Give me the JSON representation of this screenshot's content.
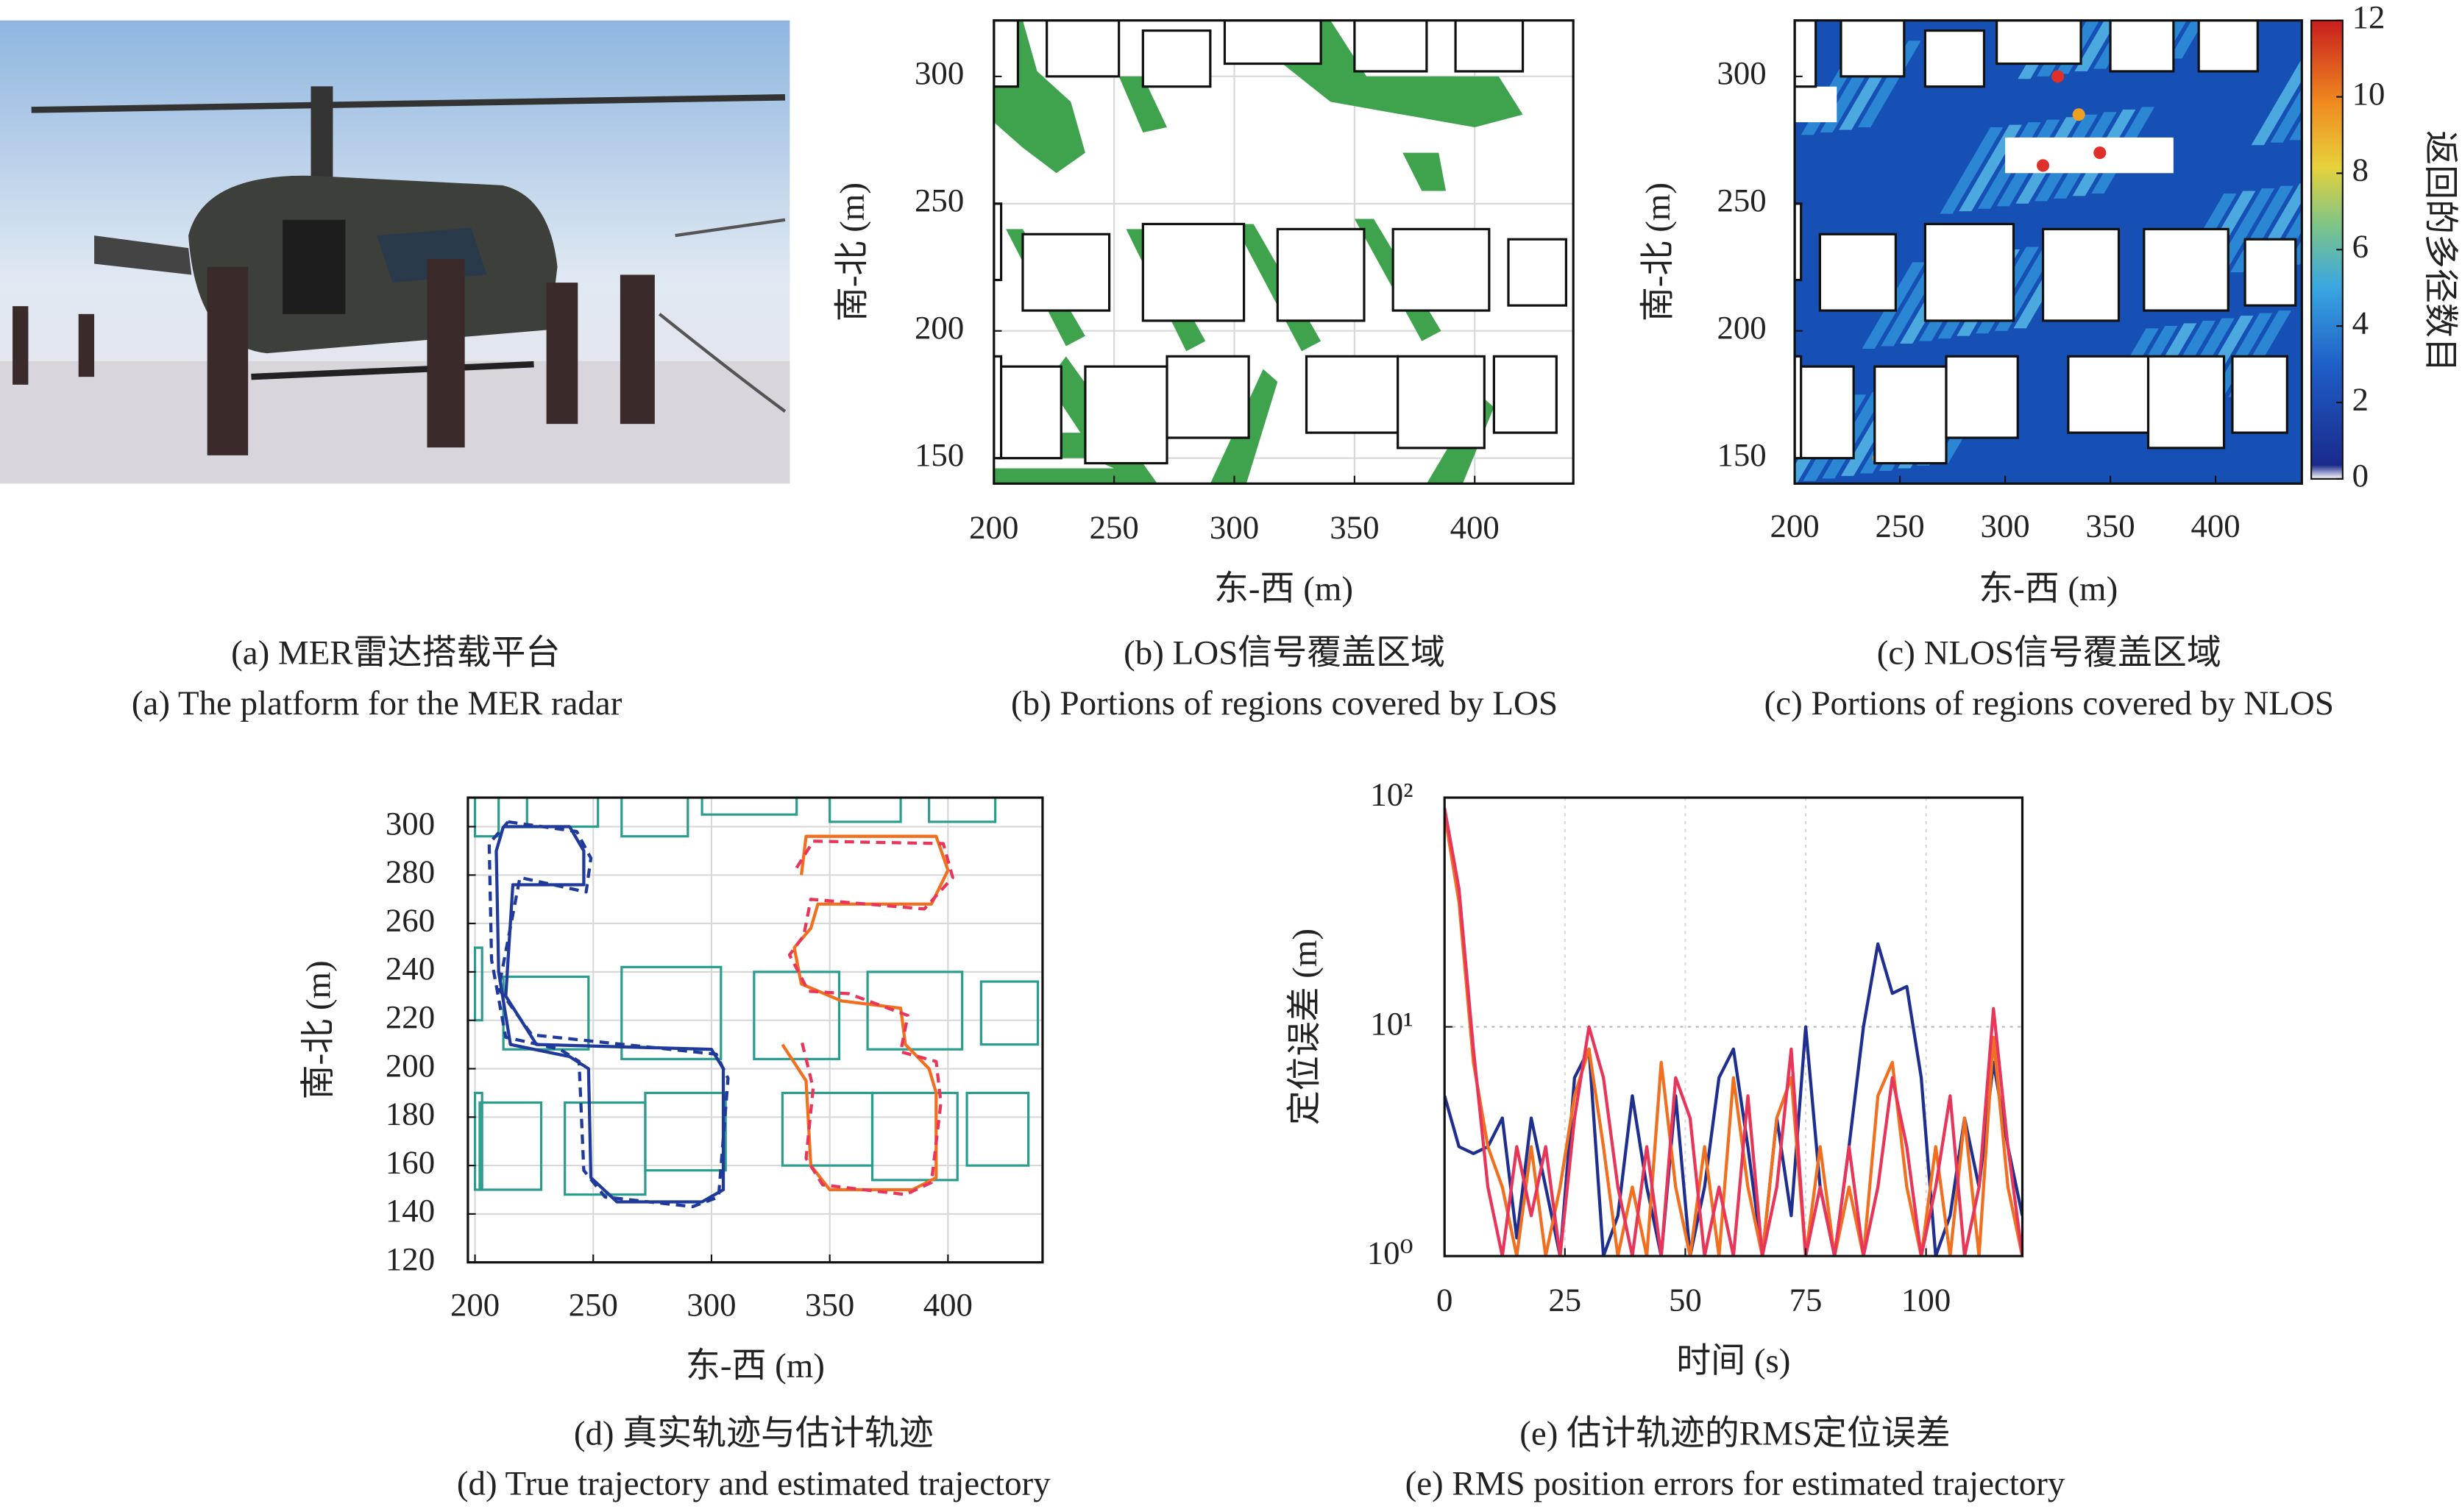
{
  "photo": {
    "caption_cn": "(a) MER雷达搭载平台",
    "caption_en": "(a) The platform for the MER radar"
  },
  "chart_data": [
    {
      "type": "map",
      "caption_cn": "(b) LOS信号覆盖区域",
      "caption_en": "(b) Portions of regions covered by LOS",
      "xlabel": "东-西 (m)",
      "ylabel": "南-北 (m)",
      "xlim": [
        200,
        441
      ],
      "ylim": [
        140,
        322
      ],
      "xticks": [
        200,
        250,
        300,
        350,
        400
      ],
      "yticks": [
        150,
        200,
        250,
        300
      ],
      "grid": true,
      "color": "#3fa34d"
    },
    {
      "type": "heatmap",
      "caption_cn": "(c) NLOS信号覆盖区域",
      "caption_en": "(c) Portions of regions covered by NLOS",
      "xlabel": "东-西 (m)",
      "ylabel": "南-北 (m)",
      "xlim": [
        200,
        441
      ],
      "ylim": [
        140,
        322
      ],
      "xticks": [
        200,
        250,
        300,
        350,
        400
      ],
      "yticks": [
        150,
        200,
        250,
        300
      ],
      "grid": false,
      "colorbar": {
        "label": "返回的多径数目",
        "lim": [
          0,
          12
        ],
        "ticks": [
          0,
          2,
          4,
          6,
          8,
          10,
          12
        ]
      }
    },
    {
      "type": "line",
      "caption_cn": "(d) 真实轨迹与估计轨迹",
      "caption_en": "(d) True trajectory and estimated trajectory",
      "xlabel": "东-西 (m)",
      "ylabel": "南-北 (m)",
      "xlim": [
        197,
        440
      ],
      "ylim": [
        120,
        312
      ],
      "xticks": [
        200,
        250,
        300,
        350,
        400
      ],
      "yticks": [
        120,
        140,
        160,
        180,
        200,
        220,
        240,
        260,
        280,
        300
      ],
      "grid": true,
      "series": [
        {
          "color": "#1f3a9a",
          "dashed": false,
          "x": [
            212,
            240,
            246,
            246,
            216,
            213,
            226,
            300,
            305,
            305,
            296,
            260,
            249,
            248,
            240,
            215,
            210,
            209,
            212
          ],
          "values": [
            300,
            300,
            290,
            276,
            276,
            230,
            210,
            208,
            200,
            150,
            145,
            145,
            155,
            200,
            205,
            210,
            240,
            290,
            300
          ]
        },
        {
          "color": "#1f3a9a",
          "dashed": true,
          "x": [
            214,
            243,
            249,
            247,
            219,
            210,
            224,
            302,
            307,
            303,
            292,
            255,
            246,
            244,
            236,
            213,
            207,
            206,
            214
          ],
          "values": [
            302,
            298,
            287,
            273,
            279,
            233,
            214,
            206,
            196,
            147,
            143,
            147,
            158,
            203,
            208,
            213,
            245,
            293,
            302
          ]
        },
        {
          "color": "#f07020",
          "dashed": false,
          "x": [
            338,
            340,
            395,
            400,
            393,
            345,
            342,
            335,
            338,
            355,
            380,
            382,
            392,
            395,
            395,
            385,
            350,
            342,
            340,
            330
          ],
          "values": [
            280,
            296,
            296,
            282,
            268,
            268,
            258,
            250,
            235,
            228,
            225,
            210,
            200,
            190,
            155,
            150,
            150,
            160,
            195,
            210
          ]
        },
        {
          "color": "#e8365a",
          "dashed": true,
          "x": [
            336,
            343,
            398,
            402,
            390,
            342,
            339,
            333,
            341,
            358,
            383,
            380,
            395,
            397,
            393,
            382,
            347,
            340,
            343,
            338
          ],
          "values": [
            283,
            294,
            293,
            279,
            266,
            270,
            255,
            247,
            232,
            231,
            222,
            207,
            203,
            186,
            153,
            148,
            152,
            163,
            192,
            212
          ]
        }
      ]
    },
    {
      "type": "line",
      "log_y": true,
      "caption_cn": "(e) 估计轨迹的RMS定位误差",
      "caption_en": "(e) RMS position errors for estimated trajectory",
      "xlabel": "时间 (s)",
      "ylabel": "定位误差 (m)",
      "xlim": [
        0,
        120
      ],
      "ylim": [
        1,
        100
      ],
      "xticks": [
        0,
        25,
        50,
        75,
        100
      ],
      "yticks": [
        {
          "value": 1,
          "label": "10⁰"
        },
        {
          "value": 10,
          "label": "10¹"
        },
        {
          "value": 100,
          "label": "10²"
        }
      ],
      "grid": true,
      "x": [
        0,
        3,
        6,
        9,
        12,
        15,
        18,
        21,
        24,
        27,
        30,
        33,
        36,
        39,
        42,
        45,
        48,
        51,
        54,
        57,
        60,
        63,
        66,
        69,
        72,
        75,
        78,
        81,
        84,
        87,
        90,
        93,
        96,
        99,
        102,
        105,
        108,
        111,
        114,
        117,
        120
      ],
      "series": [
        {
          "color": "#1f2f8f",
          "values": [
            5,
            3,
            2.8,
            3,
            4,
            1.2,
            4,
            2,
            1,
            6,
            8,
            1,
            1.5,
            5,
            2,
            1,
            5,
            1,
            2,
            6,
            8,
            3,
            1,
            4,
            1.5,
            10,
            2,
            1,
            3,
            10,
            23,
            14,
            15,
            6,
            1,
            1.5,
            4,
            2,
            7,
            3,
            1.5
          ]
        },
        {
          "color": "#f07020",
          "values": [
            85,
            35,
            7,
            3,
            2,
            1,
            3,
            1,
            2,
            5,
            8,
            3,
            1,
            2,
            1,
            7,
            2,
            1,
            3,
            1,
            6,
            2,
            1,
            4,
            6,
            1,
            3,
            1,
            2,
            1,
            5,
            7,
            2,
            1,
            3,
            1,
            4,
            1,
            9,
            2,
            1
          ]
        },
        {
          "color": "#e8365a",
          "values": [
            90,
            40,
            8,
            2,
            1,
            3,
            1.5,
            3,
            1,
            4,
            10,
            6,
            2,
            1,
            3,
            1,
            6,
            4,
            1,
            2,
            1,
            5,
            1,
            2,
            8,
            1,
            2,
            1,
            3,
            1,
            2,
            6,
            3,
            1,
            2,
            5,
            1,
            2,
            12,
            3,
            1
          ]
        }
      ]
    }
  ]
}
